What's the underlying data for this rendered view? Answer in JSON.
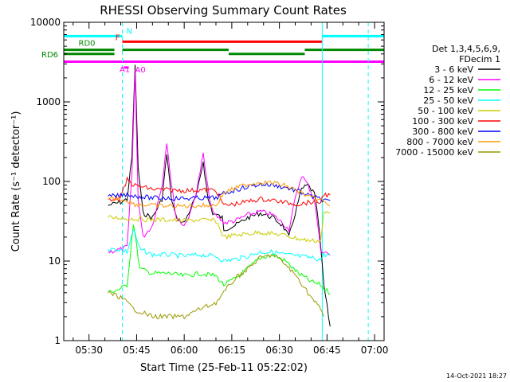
{
  "chart_data": {
    "type": "line",
    "title": "RHESSI Observing Summary Count Rates",
    "xlabel": "Start Time (25-Feb-11 05:22:02)",
    "ylabel": "Count Rate (s⁻¹ detector⁻¹)",
    "x_ticks": [
      "05:30",
      "05:45",
      "06:00",
      "06:15",
      "06:30",
      "06:45",
      "07:00"
    ],
    "y_ticks": [
      "1",
      "10",
      "100",
      "1000",
      "10000"
    ],
    "y_scale": "log",
    "ylim": [
      1,
      10000
    ],
    "xlim": [
      "05:22:02",
      "07:03:00"
    ],
    "legend_header": [
      "Det 1,3,4,5,6,9,",
      "FDecim 1"
    ],
    "timestamp": "14-Oct-2021 18:27",
    "flag_labels": {
      "N": "N",
      "F": "F",
      "RD0": "RD0",
      "RD6": "RD6",
      "A1": "A1",
      "A0": "A0"
    },
    "series": [
      {
        "name": "3 - 6 keV",
        "color": "#000000",
        "x": [
          "05:36:00",
          "05:40:00",
          "05:42:00",
          "05:43:30",
          "05:44:30",
          "05:45:30",
          "05:47:00",
          "05:50:00",
          "05:53:00",
          "05:54:30",
          "05:56:00",
          "05:57:30",
          "06:00:00",
          "06:02:00",
          "06:04:00",
          "06:06:00",
          "06:07:30",
          "06:09:00",
          "06:12:00",
          "06:12:30",
          "06:16:00",
          "06:20:00",
          "06:24:00",
          "06:28:00",
          "06:31:00",
          "06:33:00",
          "06:35:00",
          "06:37:00",
          "06:39:00",
          "06:41:00",
          "06:42:00",
          "06:43:00",
          "06:44:00",
          "06:46:00"
        ],
        "y": [
          50,
          55,
          60,
          200,
          3000,
          150,
          40,
          35,
          60,
          220,
          60,
          35,
          30,
          45,
          70,
          180,
          60,
          40,
          35,
          25,
          28,
          35,
          40,
          35,
          28,
          20,
          40,
          80,
          90,
          70,
          40,
          15,
          5,
          1.5
        ]
      },
      {
        "name": "6 - 12 keV",
        "color": "#ff00ff",
        "x": [
          "05:36:00",
          "05:40:00",
          "05:42:00",
          "05:43:30",
          "05:44:30",
          "05:45:30",
          "05:47:00",
          "05:50:00",
          "05:53:00",
          "05:54:30",
          "05:56:00",
          "05:57:30",
          "06:00:00",
          "06:02:00",
          "06:04:00",
          "06:06:00",
          "06:07:30",
          "06:09:00",
          "06:12:00",
          "06:12:30",
          "06:16:00",
          "06:20:00",
          "06:24:00",
          "06:28:00",
          "06:31:00",
          "06:33:00",
          "06:35:00",
          "06:37:00",
          "06:39:00",
          "06:41:00",
          "06:42:00",
          "06:43:00",
          "06:44:00",
          "06:46:00"
        ],
        "y": [
          13,
          14,
          15,
          120,
          2500,
          60,
          20,
          28,
          90,
          320,
          90,
          35,
          28,
          40,
          80,
          220,
          80,
          40,
          32,
          30,
          32,
          38,
          42,
          38,
          30,
          25,
          60,
          120,
          90,
          60,
          30,
          14,
          13,
          12
        ]
      },
      {
        "name": "12 - 25 keV",
        "color": "#00ff00",
        "x": [
          "05:36:00",
          "05:40:00",
          "05:42:00",
          "05:44:00",
          "05:46:00",
          "05:50:00",
          "05:55:00",
          "06:00:00",
          "06:05:00",
          "06:10:00",
          "06:12:30",
          "06:16:00",
          "06:20:00",
          "06:24:00",
          "06:28:00",
          "06:32:00",
          "06:36:00",
          "06:40:00",
          "06:43:00",
          "06:44:00",
          "06:46:00"
        ],
        "y": [
          4,
          4.5,
          5,
          30,
          8,
          7,
          7,
          6.5,
          7,
          6.5,
          5,
          6,
          8,
          11,
          12,
          10,
          7,
          5.5,
          5,
          4.5,
          4
        ]
      },
      {
        "name": "25 - 50 keV",
        "color": "#00ffff",
        "x": [
          "05:36:00",
          "05:40:00",
          "05:42:00",
          "05:44:00",
          "05:46:00",
          "05:50:00",
          "05:55:00",
          "06:00:00",
          "06:05:00",
          "06:10:00",
          "06:12:30",
          "06:16:00",
          "06:20:00",
          "06:24:00",
          "06:28:00",
          "06:32:00",
          "06:36:00",
          "06:40:00",
          "06:43:00",
          "06:44:00",
          "06:46:00"
        ],
        "y": [
          14,
          14,
          13,
          25,
          14,
          12,
          12,
          11.5,
          12,
          11.5,
          10,
          10.5,
          11.5,
          13,
          13,
          12,
          11.5,
          11,
          10.5,
          12,
          12
        ]
      },
      {
        "name": "50 - 100 keV",
        "color": "#cccc00",
        "x": [
          "05:36:00",
          "05:40:00",
          "05:42:00",
          "05:44:00",
          "05:50:00",
          "05:55:00",
          "06:00:00",
          "06:05:00",
          "06:10:00",
          "06:12:30",
          "06:16:00",
          "06:20:00",
          "06:24:00",
          "06:28:00",
          "06:32:00",
          "06:36:00",
          "06:40:00",
          "06:43:00",
          "06:44:00",
          "06:46:00"
        ],
        "y": [
          35,
          35,
          34,
          34,
          33,
          33,
          32,
          33,
          32,
          20,
          21,
          22,
          23,
          22,
          21,
          19,
          18,
          18,
          40,
          40
        ]
      },
      {
        "name": "100 - 300 keV",
        "color": "#ff0000",
        "x": [
          "05:36:00",
          "05:40:00",
          "05:42:00",
          "05:44:00",
          "05:50:00",
          "05:55:00",
          "06:00:00",
          "06:05:00",
          "06:10:00",
          "06:12:30",
          "06:16:00",
          "06:20:00",
          "06:24:00",
          "06:28:00",
          "06:32:00",
          "06:36:00",
          "06:40:00",
          "06:43:00",
          "06:44:00",
          "06:46:00"
        ],
        "y": [
          60,
          62,
          105,
          90,
          80,
          78,
          77,
          78,
          78,
          50,
          52,
          56,
          60,
          58,
          54,
          52,
          55,
          55,
          70,
          65
        ]
      },
      {
        "name": "300 - 800 keV",
        "color": "#0000ff",
        "x": [
          "05:36:00",
          "05:40:00",
          "05:42:00",
          "05:44:00",
          "05:50:00",
          "05:55:00",
          "06:00:00",
          "06:05:00",
          "06:10:00",
          "06:12:30",
          "06:16:00",
          "06:20:00",
          "06:24:00",
          "06:28:00",
          "06:32:00",
          "06:36:00",
          "06:40:00",
          "06:43:00",
          "06:44:00",
          "06:46:00"
        ],
        "y": [
          65,
          66,
          70,
          66,
          62,
          62,
          61,
          62,
          62,
          70,
          78,
          86,
          92,
          90,
          84,
          75,
          65,
          60,
          58,
          55
        ]
      },
      {
        "name": "800 - 7000 keV",
        "color": "#ff9900",
        "x": [
          "05:36:00",
          "05:40:00",
          "05:42:00",
          "05:44:00",
          "05:50:00",
          "05:55:00",
          "06:00:00",
          "06:05:00",
          "06:10:00",
          "06:12:30",
          "06:16:00",
          "06:20:00",
          "06:24:00",
          "06:28:00",
          "06:32:00",
          "06:36:00",
          "06:40:00",
          "06:43:00",
          "06:44:00",
          "06:46:00"
        ],
        "y": [
          60,
          60,
          58,
          52,
          50,
          49,
          49,
          50,
          50,
          72,
          82,
          92,
          98,
          96,
          88,
          75,
          62,
          58,
          55,
          50
        ]
      },
      {
        "name": "7000 - 15000 keV",
        "color": "#999900",
        "x": [
          "05:36:00",
          "05:40:00",
          "05:42:00",
          "05:44:00",
          "05:50:00",
          "05:55:00",
          "06:00:00",
          "06:05:00",
          "06:10:00",
          "06:12:30",
          "06:16:00",
          "06:20:00",
          "06:24:00",
          "06:28:00",
          "06:32:00",
          "06:36:00",
          "06:40:00",
          "06:43:00",
          "06:44:00"
        ],
        "y": [
          4,
          3.5,
          3,
          2.5,
          2,
          2,
          2,
          2.5,
          3,
          4,
          6,
          8,
          11,
          12,
          9,
          6,
          3.5,
          2.5,
          2
        ]
      }
    ],
    "flags": [
      {
        "label": "N",
        "color": "#00ffff",
        "y": 6700,
        "segments": [
          [
            "05:22:02",
            "05:40:30"
          ],
          [
            "06:43:30",
            "07:03:00"
          ]
        ]
      },
      {
        "label": "F",
        "color": "#ff0000",
        "y": 5700,
        "segments": [
          [
            "05:40:30",
            "06:43:30"
          ]
        ]
      },
      {
        "label": "RD0",
        "color": "#008800",
        "y": 4500,
        "segments": [
          [
            "05:22:02",
            "05:38:00"
          ],
          [
            "05:40:30",
            "06:14:00"
          ],
          [
            "06:38:00",
            "07:03:00"
          ]
        ]
      },
      {
        "label": "RD6",
        "color": "#008800",
        "y": 4000,
        "segments": [
          [
            "05:22:02",
            "05:38:00"
          ],
          [
            "06:14:00",
            "06:38:00"
          ]
        ]
      },
      {
        "label": "A1",
        "color": "#ff00ff",
        "y": 3200,
        "segments": [
          [
            "05:22:02",
            "07:03:00"
          ]
        ]
      },
      {
        "label": "A0",
        "color": "#ff00ff",
        "y": 2700,
        "segments": [
          [
            "05:41:00",
            "05:42:30"
          ]
        ]
      }
    ],
    "vlines": [
      {
        "color": "#00ffff",
        "style": "solid",
        "x": "05:22:02"
      },
      {
        "color": "#00ffff",
        "style": "dashed",
        "x": "05:40:30"
      },
      {
        "color": "#00ffff",
        "style": "solid",
        "x": "06:43:30"
      },
      {
        "color": "#00ffff",
        "style": "dashed",
        "x": "06:58:00"
      }
    ]
  }
}
